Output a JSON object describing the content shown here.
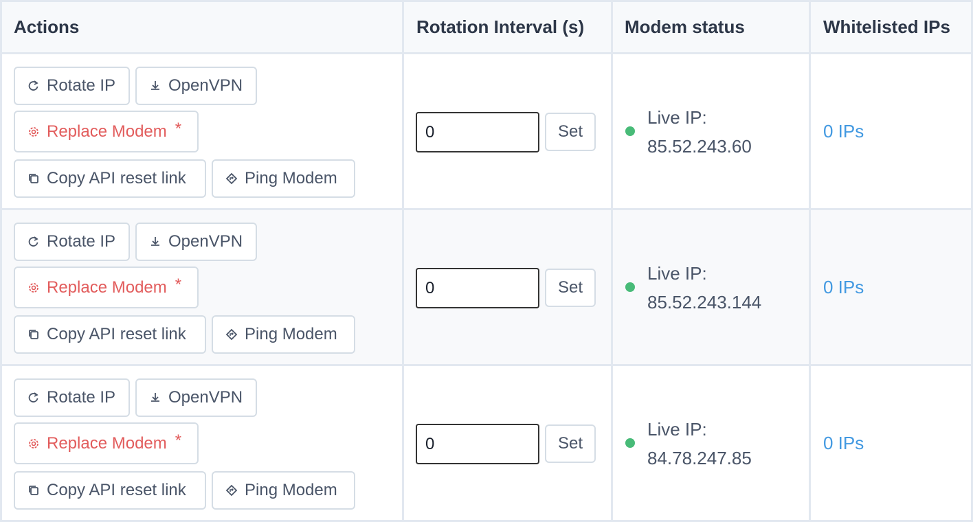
{
  "table": {
    "headers": [
      "Actions",
      "Rotation Interval (s)",
      "Modem status",
      "Whitelisted IPs"
    ],
    "rows": [
      {
        "actions": {
          "rotate": "Rotate IP",
          "openvpn": "OpenVPN",
          "replace": "Replace Modem",
          "required_mark": "*",
          "copy_link": "Copy API reset link",
          "ping": "Ping Modem"
        },
        "interval": {
          "input": "0",
          "button": "Set"
        },
        "status": {
          "label": "Live IP:",
          "ip": "85.52.243.60"
        },
        "whitelist": "0 IPs"
      },
      {
        "actions": {
          "rotate": "Rotate IP",
          "openvpn": "OpenVPN",
          "replace": "Replace Modem",
          "required_mark": "*",
          "copy_link": "Copy API reset link",
          "ping": "Ping Modem"
        },
        "interval": {
          "input": "0",
          "button": "Set"
        },
        "status": {
          "label": "Live IP:",
          "ip": "85.52.243.144"
        },
        "whitelist": "0 IPs"
      },
      {
        "actions": {
          "rotate": "Rotate IP",
          "openvpn": "OpenVPN",
          "replace": "Replace Modem",
          "required_mark": "*",
          "copy_link": "Copy API reset link",
          "ping": "Ping Modem"
        },
        "interval": {
          "input": "0",
          "button": "Set"
        },
        "status": {
          "label": "Live IP:",
          "ip": "84.78.247.85"
        },
        "whitelist": "0 IPs"
      }
    ]
  }
}
